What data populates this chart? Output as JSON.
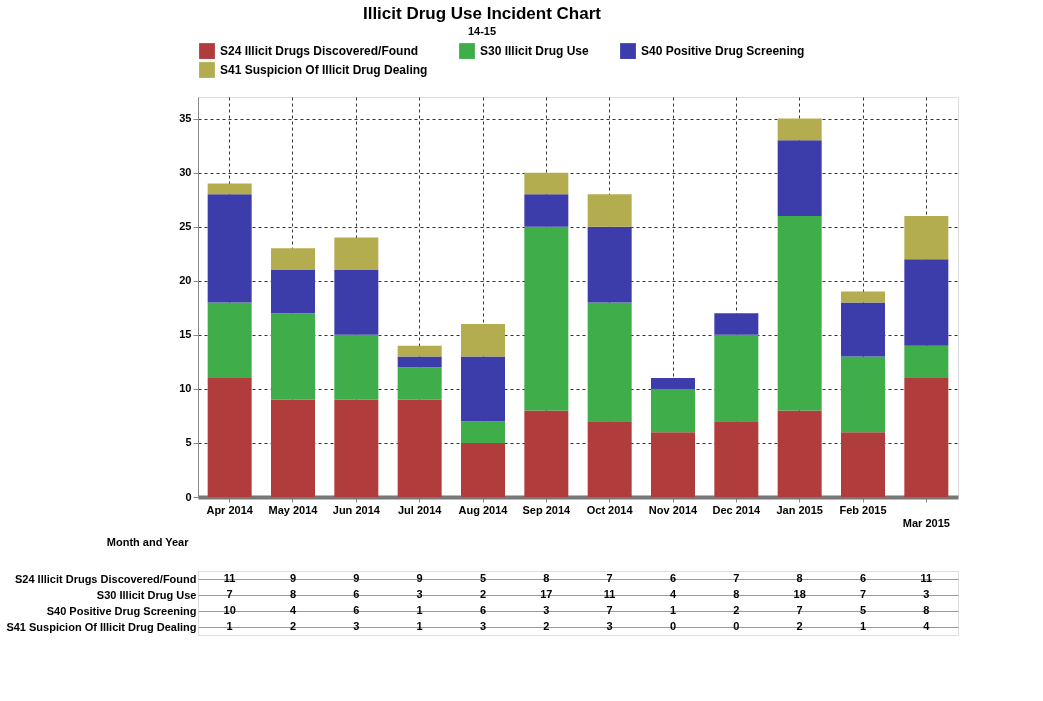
{
  "chart_data": {
    "type": "bar",
    "title": "Illicit Drug Use Incident Chart",
    "subtitle": "14-15",
    "xlabel": "Month and Year",
    "categories": [
      "Apr 2014",
      "May 2014",
      "Jun 2014",
      "Jul 2014",
      "Aug 2014",
      "Sep 2014",
      "Oct 2014",
      "Nov 2014",
      "Dec 2014",
      "Jan 2015",
      "Feb 2015",
      "Mar 2015"
    ],
    "stacked": true,
    "ylim": [
      0,
      37
    ],
    "yticks": [
      0,
      5,
      10,
      15,
      20,
      25,
      30,
      35
    ],
    "grid": true,
    "legend": "top",
    "data_labels": true,
    "series": [
      {
        "name": "S24 Illicit Drugs Discovered/Found",
        "color": "#b03c3c",
        "values": [
          11,
          9,
          9,
          9,
          5,
          8,
          7,
          6,
          7,
          8,
          6,
          11
        ]
      },
      {
        "name": "S30 Illicit Drug Use",
        "color": "#3fae4a",
        "values": [
          7,
          8,
          6,
          3,
          2,
          17,
          11,
          4,
          8,
          18,
          7,
          3
        ]
      },
      {
        "name": "S40 Positive Drug Screening",
        "color": "#3c3caa",
        "values": [
          10,
          4,
          6,
          1,
          6,
          3,
          7,
          1,
          2,
          7,
          5,
          8
        ]
      },
      {
        "name": "S41 Suspicion Of Illicit Drug Dealing",
        "color": "#b3ad4f",
        "values": [
          1,
          2,
          3,
          1,
          3,
          2,
          3,
          0,
          0,
          2,
          1,
          4
        ]
      }
    ]
  }
}
